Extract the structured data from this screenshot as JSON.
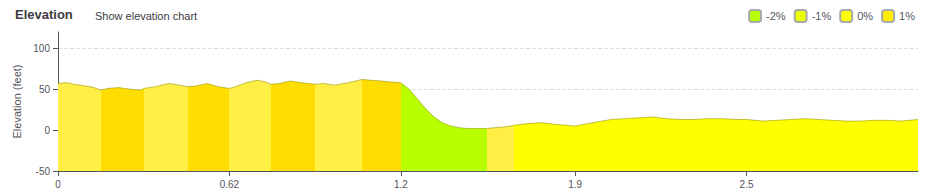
{
  "chart_data": {
    "type": "area",
    "title": "Elevation",
    "subtitle": "Show elevation chart",
    "y_label": "Elevation (feet)",
    "xlim": [
      0,
      3.11
    ],
    "ylim": [
      -50,
      120
    ],
    "xticks": [
      0,
      0.62,
      {
        "value": 1.24,
        "label": "1.2"
      },
      {
        "value": 1.87,
        "label": "1.9"
      },
      {
        "value": 2.49,
        "label": "2.5"
      }
    ],
    "yticks": [
      -50,
      0,
      50,
      100
    ],
    "grid": true,
    "legend_entries": [
      {
        "label": "-2%",
        "color": "#b8ff00"
      },
      {
        "label": "-1%",
        "color": "#e8ff00"
      },
      {
        "label": "0%",
        "color": "#ffff00"
      },
      {
        "label": "1%",
        "color": "#ffee00"
      }
    ],
    "segments": [
      {
        "x_start": 0.0,
        "x_end": 0.155,
        "color": "#ffee44"
      },
      {
        "x_start": 0.155,
        "x_end": 0.31,
        "color": "#ffdd00"
      },
      {
        "x_start": 0.31,
        "x_end": 0.47,
        "color": "#ffee44"
      },
      {
        "x_start": 0.47,
        "x_end": 0.62,
        "color": "#ffdd00"
      },
      {
        "x_start": 0.62,
        "x_end": 0.77,
        "color": "#ffee44"
      },
      {
        "x_start": 0.77,
        "x_end": 0.93,
        "color": "#ffdd00"
      },
      {
        "x_start": 0.93,
        "x_end": 1.1,
        "color": "#ffee44"
      },
      {
        "x_start": 1.1,
        "x_end": 1.24,
        "color": "#ffdd00"
      },
      {
        "x_start": 1.24,
        "x_end": 1.55,
        "color": "#b8ff00"
      },
      {
        "x_start": 1.55,
        "x_end": 1.65,
        "color": "#ffee44"
      },
      {
        "x_start": 1.65,
        "x_end": 3.11,
        "color": "#ffff00"
      }
    ],
    "x": [
      0.0,
      0.03,
      0.06,
      0.1,
      0.13,
      0.155,
      0.18,
      0.22,
      0.26,
      0.3,
      0.31,
      0.35,
      0.4,
      0.44,
      0.47,
      0.5,
      0.54,
      0.58,
      0.62,
      0.65,
      0.68,
      0.72,
      0.75,
      0.77,
      0.8,
      0.84,
      0.88,
      0.93,
      0.96,
      1.0,
      1.05,
      1.1,
      1.13,
      1.17,
      1.2,
      1.24,
      1.27,
      1.3,
      1.33,
      1.36,
      1.39,
      1.42,
      1.45,
      1.48,
      1.51,
      1.55,
      1.58,
      1.62,
      1.65,
      1.7,
      1.75,
      1.8,
      1.87,
      1.9,
      1.95,
      2.0,
      2.05,
      2.1,
      2.15,
      2.2,
      2.25,
      2.3,
      2.35,
      2.4,
      2.45,
      2.49,
      2.55,
      2.6,
      2.65,
      2.7,
      2.75,
      2.8,
      2.85,
      2.9,
      2.95,
      3.0,
      3.05,
      3.11
    ],
    "values": [
      57,
      58,
      56,
      54,
      52,
      49,
      51,
      52,
      50,
      49,
      51,
      53,
      57,
      55,
      53,
      54,
      57,
      53,
      51,
      54,
      58,
      61,
      59,
      56,
      57,
      60,
      58,
      56,
      57,
      55,
      58,
      62,
      61,
      60,
      59,
      58,
      50,
      38,
      26,
      16,
      9,
      5,
      3,
      2,
      2,
      2,
      3,
      4,
      6,
      8,
      9,
      7,
      5,
      7,
      10,
      13,
      14,
      15,
      16,
      14,
      13,
      13,
      14,
      14,
      13,
      13,
      11,
      12,
      13,
      14,
      13,
      12,
      11,
      11,
      12,
      12,
      11,
      13
    ]
  }
}
